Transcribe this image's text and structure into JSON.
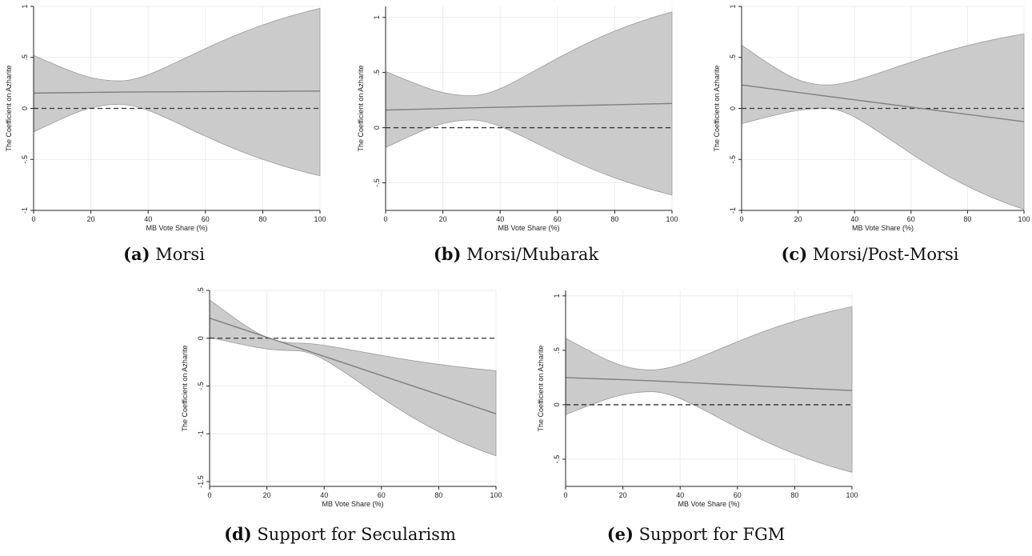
{
  "chart_data": [
    {
      "type": "area",
      "caption_label": "(a)",
      "caption_text": "Morsi",
      "xlabel": "MB Vote Share (%)",
      "ylabel": "The Coefficient on Azharite",
      "xlim": [
        0,
        100
      ],
      "ylim": [
        -1,
        1
      ],
      "xticks": [
        "0",
        "20",
        "40",
        "60",
        "80",
        "100"
      ],
      "yticks": [
        "-1",
        "-.5",
        "0",
        ".5",
        "1"
      ],
      "reference_line": 0,
      "grid": true,
      "series": [
        {
          "x": [
            0,
            30,
            100
          ],
          "estimate": [
            0.15,
            0.16,
            0.17
          ],
          "upper": [
            0.52,
            0.27,
            0.98
          ],
          "lower": [
            -0.23,
            0.04,
            -0.66
          ]
        }
      ]
    },
    {
      "type": "area",
      "caption_label": "(b)",
      "caption_text": "Morsi/Mubarak",
      "xlabel": "MB Vote Share (%)",
      "ylabel": "The Coefficient on Azharite",
      "xlim": [
        0,
        100
      ],
      "ylim": [
        -0.75,
        1.1
      ],
      "xticks": [
        "0",
        "20",
        "40",
        "60",
        "80",
        "100"
      ],
      "yticks": [
        "-.5",
        "0",
        ".5",
        "1"
      ],
      "reference_line": 0,
      "grid": true,
      "series": [
        {
          "x": [
            0,
            30,
            100
          ],
          "estimate": [
            0.16,
            0.18,
            0.22
          ],
          "upper": [
            0.51,
            0.29,
            1.05
          ],
          "lower": [
            -0.18,
            0.07,
            -0.61
          ]
        }
      ]
    },
    {
      "type": "area",
      "caption_label": "(c)",
      "caption_text": "Morsi/Post-Morsi",
      "xlabel": "MB Vote Share (%)",
      "ylabel": "The Coefficient on Azharite",
      "xlim": [
        0,
        100
      ],
      "ylim": [
        -1,
        1
      ],
      "xticks": [
        "0",
        "20",
        "40",
        "60",
        "80",
        "100"
      ],
      "yticks": [
        "-1",
        "-.5",
        "0",
        ".5",
        "1"
      ],
      "reference_line": 0,
      "grid": true,
      "series": [
        {
          "x": [
            0,
            30,
            100
          ],
          "estimate": [
            0.23,
            0.12,
            -0.13
          ],
          "upper": [
            0.62,
            0.23,
            0.73
          ],
          "lower": [
            -0.15,
            0.0,
            -0.99
          ]
        }
      ]
    },
    {
      "type": "area",
      "caption_label": "(d)",
      "caption_text": "Support for Secularism",
      "xlabel": "MB Vote Share (%)",
      "ylabel": "The Coefficient on Azharite",
      "xlim": [
        0,
        100
      ],
      "ylim": [
        -1.55,
        0.5
      ],
      "xticks": [
        "0",
        "20",
        "40",
        "60",
        "80",
        "100"
      ],
      "yticks": [
        "-1.5",
        "-1",
        "-.5",
        "0",
        ".5"
      ],
      "reference_line": 0,
      "grid": true,
      "series": [
        {
          "x": [
            0,
            30,
            100
          ],
          "estimate": [
            0.21,
            -0.09,
            -0.79
          ],
          "upper": [
            0.4,
            -0.05,
            -0.34
          ],
          "lower": [
            0.01,
            -0.13,
            -1.23
          ]
        }
      ]
    },
    {
      "type": "area",
      "caption_label": "(e)",
      "caption_text": "Support for FGM",
      "xlabel": "MB Vote Share (%)",
      "ylabel": "The Coefficient on Azharite",
      "xlim": [
        0,
        100
      ],
      "ylim": [
        -0.75,
        1.05
      ],
      "xticks": [
        "0",
        "20",
        "40",
        "60",
        "80",
        "100"
      ],
      "yticks": [
        "-.5",
        "0",
        ".5",
        "1"
      ],
      "reference_line": 0,
      "grid": true,
      "series": [
        {
          "x": [
            0,
            30,
            100
          ],
          "estimate": [
            0.25,
            0.22,
            0.13
          ],
          "upper": [
            0.61,
            0.32,
            0.9
          ],
          "lower": [
            -0.09,
            0.12,
            -0.62
          ]
        }
      ]
    }
  ],
  "colors": {
    "band": "#cbcbcb",
    "band_edge": "#9a9a9a",
    "estimate": "#7f7f7f",
    "reference": "#333333",
    "grid": "#ececec",
    "axis": "#222222"
  }
}
